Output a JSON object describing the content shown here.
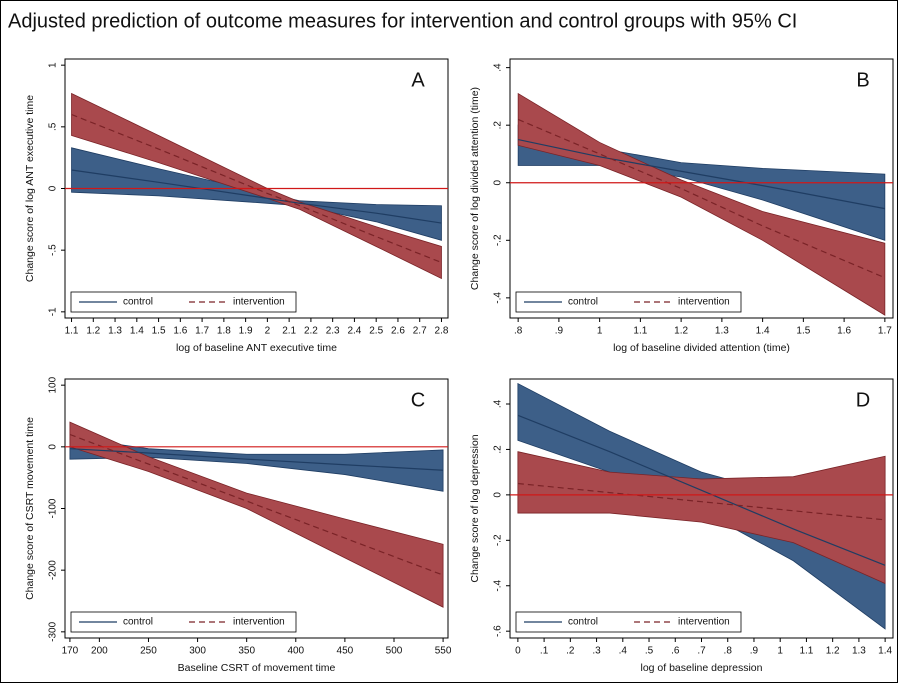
{
  "chart_data": [
    {
      "type": "line",
      "title": "Adjusted prediction of outcome measures for intervention and control groups with 95% CI",
      "label": "A",
      "xlabel": "log of baseline ANT executive time",
      "ylabel": "Change score of log ANT executive time",
      "x": [
        1.1,
        1.5,
        2.0,
        2.15,
        2.5,
        2.8
      ],
      "xlim": [
        1.07,
        2.83
      ],
      "xticks": [
        1.1,
        1.2,
        1.3,
        1.4,
        1.5,
        1.6,
        1.7,
        1.8,
        1.9,
        2,
        2.1,
        2.2,
        2.3,
        2.4,
        2.5,
        2.6,
        2.7,
        2.8
      ],
      "ylim": [
        -1.05,
        1.05
      ],
      "yticks": [
        -1,
        {
          "value": -0.5,
          "label": "-.5"
        },
        0,
        {
          "value": 0.5,
          "label": ".5"
        },
        1
      ],
      "hline": 0,
      "legend": "bottom-left",
      "series": [
        {
          "name": "control",
          "color": "#1f3d63",
          "fill": "#3d5f88",
          "dash": false,
          "values": [
            0.15,
            0.05,
            -0.08,
            -0.12,
            -0.2,
            -0.28
          ],
          "lower": [
            -0.03,
            -0.06,
            -0.12,
            -0.14,
            -0.27,
            -0.42
          ],
          "upper": [
            0.33,
            0.16,
            -0.04,
            -0.1,
            -0.13,
            -0.14
          ]
        },
        {
          "name": "intervention",
          "color": "#7a2327",
          "fill": "#a9494d",
          "dash": true,
          "values": [
            0.6,
            0.32,
            -0.04,
            -0.14,
            -0.39,
            -0.6
          ],
          "lower": [
            0.43,
            0.21,
            -0.08,
            -0.17,
            -0.47,
            -0.73
          ],
          "upper": [
            0.77,
            0.43,
            0.0,
            -0.11,
            -0.31,
            -0.47
          ]
        }
      ]
    },
    {
      "type": "line",
      "label": "B",
      "xlabel": "log of baseline divided attention (time)",
      "ylabel": "Change score of log divided attention (time)",
      "x": [
        0.8,
        1.0,
        1.2,
        1.4,
        1.7
      ],
      "xlim": [
        0.78,
        1.72
      ],
      "xticks": [
        {
          "value": 0.8,
          "label": ".8"
        },
        {
          "value": 0.9,
          "label": ".9"
        },
        1,
        1.1,
        1.2,
        1.3,
        1.4,
        1.5,
        1.6,
        1.7
      ],
      "ylim": [
        -0.47,
        0.43
      ],
      "yticks": [
        {
          "value": -0.4,
          "label": "-.4"
        },
        {
          "value": -0.2,
          "label": "-.2"
        },
        0,
        {
          "value": 0.2,
          "label": ".2"
        },
        {
          "value": 0.4,
          "label": ".4"
        }
      ],
      "hline": 0,
      "legend": "bottom-left",
      "series": [
        {
          "name": "control",
          "color": "#1f3d63",
          "fill": "#3d5f88",
          "dash": false,
          "values": [
            0.15,
            0.09,
            0.04,
            -0.01,
            -0.09
          ],
          "lower": [
            0.06,
            0.06,
            0.02,
            -0.06,
            -0.2
          ],
          "upper": [
            0.2,
            0.12,
            0.07,
            0.05,
            0.03
          ]
        },
        {
          "name": "intervention",
          "color": "#7a2327",
          "fill": "#a9494d",
          "dash": true,
          "values": [
            0.22,
            0.1,
            -0.02,
            -0.15,
            -0.33
          ],
          "lower": [
            0.13,
            0.06,
            -0.05,
            -0.2,
            -0.46
          ],
          "upper": [
            0.31,
            0.14,
            0.01,
            -0.1,
            -0.21
          ]
        }
      ]
    },
    {
      "type": "line",
      "label": "C",
      "xlabel": "Baseline CSRT of movement time",
      "ylabel": "Change score of CSRT movement time",
      "x": [
        170,
        250,
        350,
        450,
        550
      ],
      "xlim": [
        165,
        555
      ],
      "xticks": [
        170,
        200,
        250,
        300,
        350,
        400,
        450,
        500,
        550
      ],
      "ylim": [
        -310,
        110
      ],
      "yticks": [
        -300,
        -200,
        -100,
        0,
        100
      ],
      "hline": 0,
      "legend": "bottom-left",
      "series": [
        {
          "name": "control",
          "color": "#1f3d63",
          "fill": "#3d5f88",
          "dash": false,
          "values": [
            -3,
            -10,
            -20,
            -29,
            -38
          ],
          "lower": [
            -20,
            -17,
            -27,
            -45,
            -72
          ],
          "upper": [
            15,
            -3,
            -12,
            -12,
            -5
          ]
        },
        {
          "name": "intervention",
          "color": "#7a2327",
          "fill": "#a9494d",
          "dash": true,
          "values": [
            20,
            -28,
            -88,
            -148,
            -208
          ],
          "lower": [
            0,
            -40,
            -100,
            -180,
            -260
          ],
          "upper": [
            40,
            -16,
            -75,
            -117,
            -158
          ]
        }
      ]
    },
    {
      "type": "line",
      "label": "D",
      "xlabel": "log of baseline depression",
      "ylabel": "Change score of log depression",
      "x": [
        0,
        0.35,
        0.7,
        1.05,
        1.4
      ],
      "xlim": [
        -0.03,
        1.43
      ],
      "xticks": [
        0,
        {
          "value": 0.1,
          "label": ".1"
        },
        {
          "value": 0.2,
          "label": ".2"
        },
        {
          "value": 0.3,
          "label": ".3"
        },
        {
          "value": 0.4,
          "label": ".4"
        },
        {
          "value": 0.5,
          "label": ".5"
        },
        {
          "value": 0.6,
          "label": ".6"
        },
        {
          "value": 0.7,
          "label": ".7"
        },
        {
          "value": 0.8,
          "label": ".8"
        },
        {
          "value": 0.9,
          "label": ".9"
        },
        1,
        1.1,
        1.2,
        1.3,
        1.4
      ],
      "ylim": [
        -0.63,
        0.51
      ],
      "yticks": [
        {
          "value": -0.6,
          "label": "-.6"
        },
        {
          "value": -0.4,
          "label": "-.4"
        },
        {
          "value": -0.2,
          "label": "-.2"
        },
        0,
        {
          "value": 0.2,
          "label": ".2"
        },
        {
          "value": 0.4,
          "label": ".4"
        }
      ],
      "hline": 0,
      "legend": "bottom-left",
      "series": [
        {
          "name": "control",
          "color": "#1f3d63",
          "fill": "#3d5f88",
          "dash": false,
          "values": [
            0.35,
            0.19,
            0.02,
            -0.15,
            -0.31
          ],
          "lower": [
            0.24,
            0.1,
            -0.07,
            -0.29,
            -0.59
          ],
          "upper": [
            0.49,
            0.28,
            0.1,
            -0.01,
            -0.03
          ]
        },
        {
          "name": "intervention",
          "color": "#7a2327",
          "fill": "#a9494d",
          "dash": true,
          "values": [
            0.05,
            0.01,
            -0.03,
            -0.07,
            -0.11
          ],
          "lower": [
            -0.08,
            -0.08,
            -0.12,
            -0.21,
            -0.39
          ],
          "upper": [
            0.19,
            0.1,
            0.07,
            0.08,
            0.17
          ]
        }
      ]
    }
  ]
}
